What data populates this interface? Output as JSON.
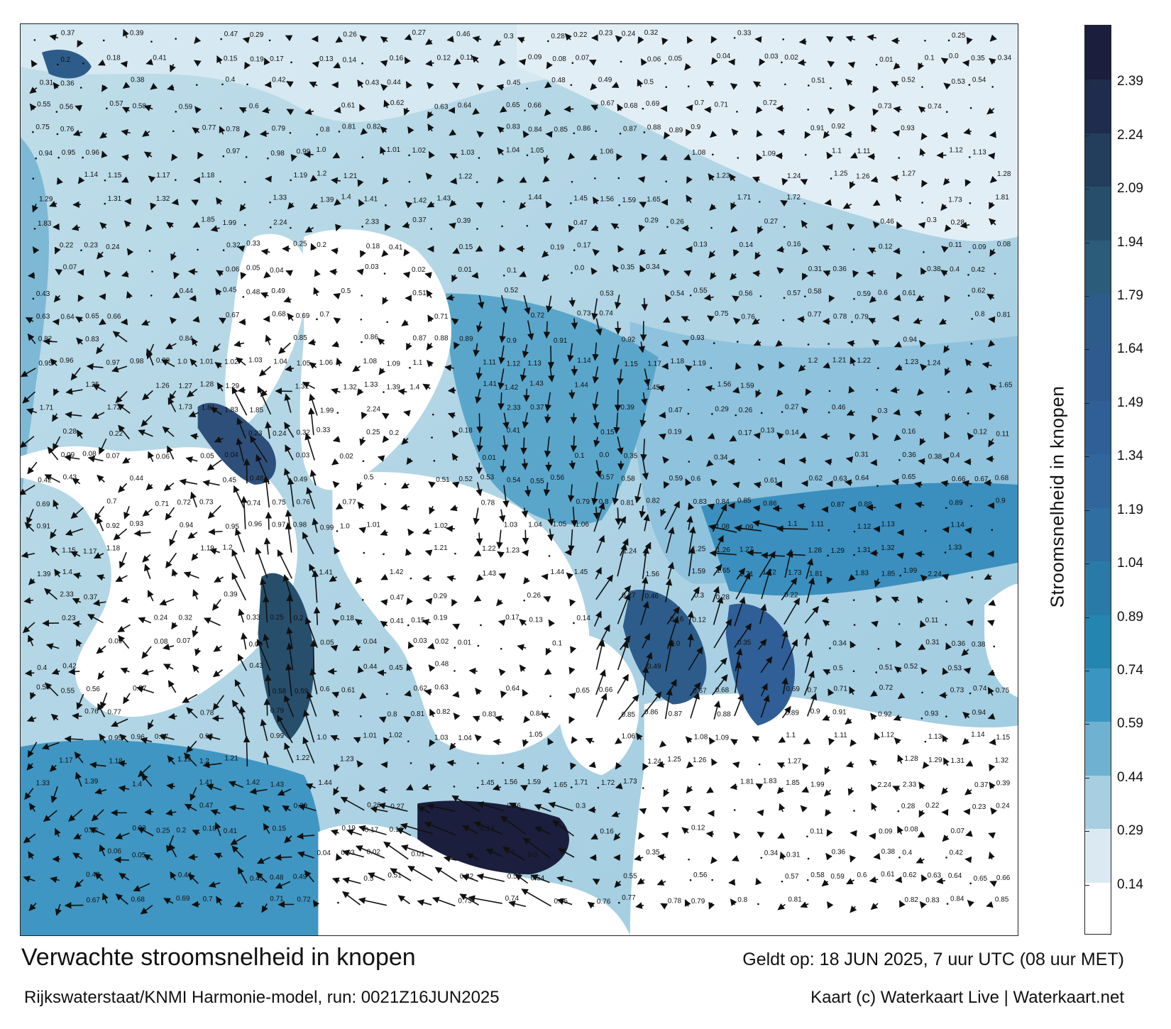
{
  "title": "Verwachte stroomsnelheid in knopen",
  "model_run": "Rijkswaterstaat/KNMI Harmonie-model, run: 0021Z16JUN2025",
  "valid_time": "Geldt op: 18 JUN 2025, 7 uur UTC (08 uur MET)",
  "credit": "Kaart (c) Waterkaart Live | Waterkaart.net",
  "colorbar": {
    "label": "Stroomsnelheid in knopen",
    "ticks": [
      "2.39",
      "2.24",
      "2.09",
      "1.94",
      "1.79",
      "1.64",
      "1.49",
      "1.34",
      "1.19",
      "1.04",
      "0.89",
      "0.74",
      "0.59",
      "0.44",
      "0.29",
      "0.14"
    ],
    "tick_values": [
      2.39,
      2.24,
      2.09,
      1.94,
      1.79,
      1.64,
      1.49,
      1.34,
      1.19,
      1.04,
      0.89,
      0.74,
      0.59,
      0.44,
      0.29,
      0.14
    ],
    "min": 0.0,
    "max": 2.55,
    "colors": [
      "#ffffff",
      "#dbeaf2",
      "#a7cfe1",
      "#6eb1d1",
      "#3a96c0",
      "#2585b1",
      "#2a7aa7",
      "#2e6ea0",
      "#30669c",
      "#2f5f96",
      "#2f5a90",
      "#2e5c8a",
      "#2b5c7a",
      "#274f6c",
      "#233d5d",
      "#1f2c4d",
      "#1b1e3c"
    ]
  },
  "map": {
    "land_color": "#ffffff",
    "arrow_color": "#111111",
    "speed_labels": [
      {
        "t": "0.37"
      },
      {
        "t": "0.39"
      },
      {
        "t": "0.47"
      },
      {
        "t": "0.29"
      },
      {
        "t": "0.26"
      },
      {
        "t": "0.27"
      },
      {
        "t": "0.46"
      },
      {
        "t": "0.3"
      },
      {
        "t": "0.28"
      },
      {
        "t": "0.22"
      },
      {
        "t": "0.23"
      },
      {
        "t": "0.24"
      },
      {
        "t": "0.32"
      },
      {
        "t": "0.33"
      },
      {
        "t": "0.25"
      },
      {
        "t": "0.2"
      },
      {
        "t": "0.18"
      },
      {
        "t": "0.41"
      },
      {
        "t": "0.15"
      },
      {
        "t": "0.19"
      },
      {
        "t": "0.17"
      },
      {
        "t": "0.13"
      },
      {
        "t": "0.14"
      },
      {
        "t": "0.16"
      },
      {
        "t": "0.12"
      },
      {
        "t": "0.11"
      },
      {
        "t": "0.09"
      },
      {
        "t": "0.08"
      },
      {
        "t": "0.07"
      },
      {
        "t": "0.06"
      },
      {
        "t": "0.05"
      },
      {
        "t": "0.04"
      },
      {
        "t": "0.03"
      },
      {
        "t": "0.02"
      },
      {
        "t": "0.01"
      },
      {
        "t": "0.1"
      },
      {
        "t": "0.0"
      },
      {
        "t": "0.35"
      },
      {
        "t": "0.34"
      },
      {
        "t": "0.31"
      },
      {
        "t": "0.36"
      },
      {
        "t": "0.38"
      },
      {
        "t": "0.4"
      },
      {
        "t": "0.42"
      },
      {
        "t": "0.43"
      },
      {
        "t": "0.44"
      },
      {
        "t": "0.45"
      },
      {
        "t": "0.48"
      },
      {
        "t": "0.49"
      },
      {
        "t": "0.5"
      },
      {
        "t": "0.51"
      },
      {
        "t": "0.52"
      },
      {
        "t": "0.53"
      },
      {
        "t": "0.54"
      },
      {
        "t": "0.55"
      },
      {
        "t": "0.56"
      },
      {
        "t": "0.57"
      },
      {
        "t": "0.58"
      },
      {
        "t": "0.59"
      },
      {
        "t": "0.6"
      },
      {
        "t": "0.61"
      },
      {
        "t": "0.62"
      },
      {
        "t": "0.63"
      },
      {
        "t": "0.64"
      },
      {
        "t": "0.65"
      },
      {
        "t": "0.66"
      },
      {
        "t": "0.67"
      },
      {
        "t": "0.68"
      },
      {
        "t": "0.69"
      },
      {
        "t": "0.7"
      },
      {
        "t": "0.71"
      },
      {
        "t": "0.72"
      },
      {
        "t": "0.73"
      },
      {
        "t": "0.74"
      },
      {
        "t": "0.75"
      },
      {
        "t": "0.76"
      },
      {
        "t": "0.77"
      },
      {
        "t": "0.78"
      },
      {
        "t": "0.79"
      },
      {
        "t": "0.8"
      },
      {
        "t": "0.81"
      },
      {
        "t": "0.82"
      },
      {
        "t": "0.83"
      },
      {
        "t": "0.84"
      },
      {
        "t": "0.85"
      },
      {
        "t": "0.86"
      },
      {
        "t": "0.87"
      },
      {
        "t": "0.88"
      },
      {
        "t": "0.89"
      },
      {
        "t": "0.9"
      },
      {
        "t": "0.91"
      },
      {
        "t": "0.92"
      },
      {
        "t": "0.93"
      },
      {
        "t": "0.94"
      },
      {
        "t": "0.95"
      },
      {
        "t": "0.96"
      },
      {
        "t": "0.97"
      },
      {
        "t": "0.98"
      },
      {
        "t": "0.99"
      },
      {
        "t": "1.0"
      },
      {
        "t": "1.01"
      },
      {
        "t": "1.02"
      },
      {
        "t": "1.03"
      },
      {
        "t": "1.04"
      },
      {
        "t": "1.05"
      },
      {
        "t": "1.06"
      },
      {
        "t": "1.08"
      },
      {
        "t": "1.09"
      },
      {
        "t": "1.1"
      },
      {
        "t": "1.11"
      },
      {
        "t": "1.12"
      },
      {
        "t": "1.13"
      },
      {
        "t": "1.14"
      },
      {
        "t": "1.15"
      },
      {
        "t": "1.17"
      },
      {
        "t": "1.18"
      },
      {
        "t": "1.19"
      },
      {
        "t": "1.2"
      },
      {
        "t": "1.21"
      },
      {
        "t": "1.22"
      },
      {
        "t": "1.23"
      },
      {
        "t": "1.24"
      },
      {
        "t": "1.25"
      },
      {
        "t": "1.26"
      },
      {
        "t": "1.27"
      },
      {
        "t": "1.28"
      },
      {
        "t": "1.29"
      },
      {
        "t": "1.31"
      },
      {
        "t": "1.32"
      },
      {
        "t": "1.33"
      },
      {
        "t": "1.39"
      },
      {
        "t": "1.4"
      },
      {
        "t": "1.41"
      },
      {
        "t": "1.42"
      },
      {
        "t": "1.43"
      },
      {
        "t": "1.44"
      },
      {
        "t": "1.45"
      },
      {
        "t": "1.56"
      },
      {
        "t": "1.59"
      },
      {
        "t": "1.65"
      },
      {
        "t": "1.71"
      },
      {
        "t": "1.72"
      },
      {
        "t": "1.73"
      },
      {
        "t": "1.81"
      },
      {
        "t": "1.83"
      },
      {
        "t": "1.85"
      },
      {
        "t": "1.99"
      },
      {
        "t": "2.24"
      },
      {
        "t": "2.33"
      }
    ]
  }
}
